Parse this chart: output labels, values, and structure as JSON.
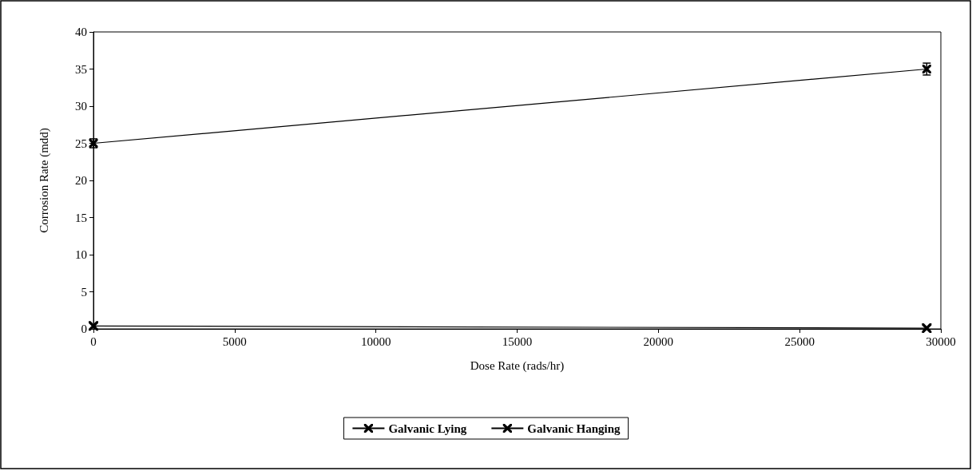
{
  "chart_data": {
    "type": "line",
    "xlabel": "Dose Rate (rads/hr)",
    "ylabel": "Corrosion Rate (mdd)",
    "xlim": [
      0,
      30000
    ],
    "xticks": [
      0,
      5000,
      10000,
      15000,
      20000,
      25000,
      30000
    ],
    "ylim": [
      0,
      40
    ],
    "yticks": [
      0,
      5,
      10,
      15,
      20,
      25,
      30,
      35,
      40
    ],
    "grid": false,
    "legend": "bottom",
    "marker": "cross",
    "line_style": "solid",
    "x": [
      0,
      29500
    ],
    "series": [
      {
        "name": "Galvanic Lying",
        "color": "#000000",
        "values": [
          25,
          35
        ],
        "errors": [
          0.6,
          0.8
        ]
      },
      {
        "name": "Galvanic Hanging",
        "color": "#000000",
        "values": [
          0.4,
          0.1
        ]
      }
    ]
  }
}
